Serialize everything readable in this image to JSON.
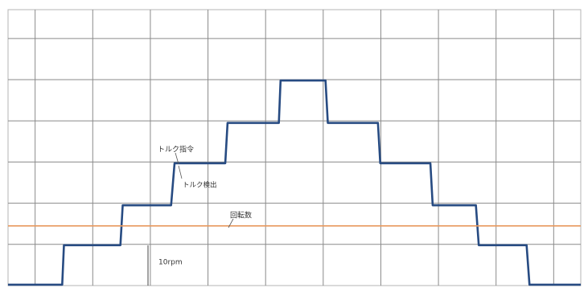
{
  "chart_data": {
    "type": "line",
    "xlim": [
      0.53,
      10.47
    ],
    "ylim": [
      0,
      6.7
    ],
    "xticks": [
      1,
      2,
      3,
      4,
      5,
      6,
      7,
      8,
      9,
      10
    ],
    "yticks": [
      1,
      2,
      3,
      4,
      5,
      6
    ],
    "grid": true,
    "series": [
      {
        "name": "トルク指令",
        "color": "#274b82",
        "x": [
          0.53,
          1.47,
          1.5,
          2.48,
          2.52,
          3.36,
          3.42,
          4.3,
          4.34,
          5.23,
          5.26,
          6.04,
          6.08,
          6.95,
          6.99,
          7.86,
          7.9,
          8.65,
          8.7,
          9.53,
          9.58,
          10.47
        ],
        "values": [
          0.02,
          0.02,
          0.98,
          0.98,
          1.95,
          1.95,
          2.97,
          2.97,
          3.95,
          3.95,
          4.98,
          4.98,
          3.95,
          3.95,
          2.97,
          2.97,
          1.95,
          1.95,
          0.98,
          0.98,
          0.02,
          0.02
        ]
      },
      {
        "name": "回転数",
        "color": "#e8995e",
        "x": [
          0.53,
          10.47
        ],
        "values": [
          1.45,
          1.45
        ]
      }
    ],
    "annotations": [
      "トルク検出",
      "10rpm"
    ]
  }
}
